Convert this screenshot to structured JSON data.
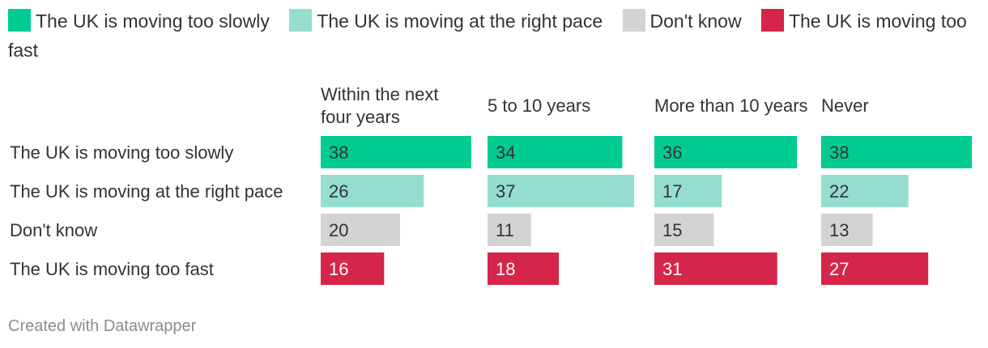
{
  "chart_data": {
    "type": "bar",
    "layout": "small-multiples",
    "categories": [
      "The UK is moving too slowly",
      "The UK is moving at the right pace",
      "Don't know",
      "The UK is moving too fast"
    ],
    "colors": [
      "#00cc92",
      "#95ddd1",
      "#d3d3d3",
      "#d6254a"
    ],
    "series": [
      {
        "name": "Within the next four years",
        "values": [
          38,
          26,
          20,
          16
        ]
      },
      {
        "name": "5 to 10 years",
        "values": [
          34,
          37,
          11,
          18
        ]
      },
      {
        "name": "More than 10 years",
        "values": [
          36,
          17,
          15,
          31
        ]
      },
      {
        "name": "Never",
        "values": [
          38,
          22,
          13,
          27
        ]
      }
    ],
    "ylim": [
      0,
      38
    ],
    "legend_position": "top",
    "grid": false
  },
  "legend": [
    {
      "label": "The UK is moving too slowly",
      "color": "#00cc92"
    },
    {
      "label": "The UK is moving at the right pace",
      "color": "#95ddd1"
    },
    {
      "label": "Don't know",
      "color": "#d3d3d3"
    },
    {
      "label": "The UK is moving too fast",
      "color": "#d6254a"
    }
  ],
  "credit": "Created with Datawrapper"
}
